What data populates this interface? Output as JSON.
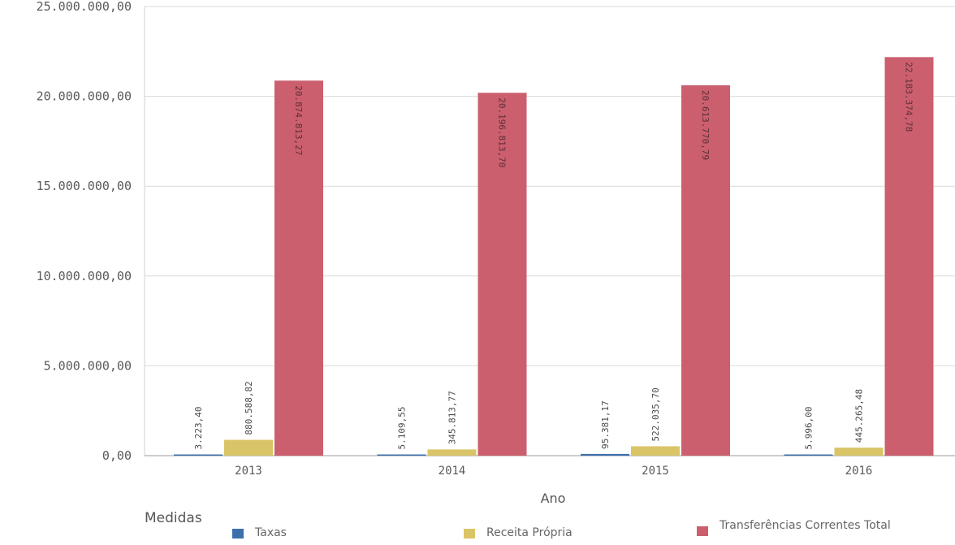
{
  "chart_data": {
    "type": "bar",
    "categories": [
      "2013",
      "2014",
      "2015",
      "2016"
    ],
    "xlabel": "Ano",
    "ylabel": "",
    "ylim": [
      0,
      25000000
    ],
    "yticks": [
      0,
      5000000,
      10000000,
      15000000,
      20000000,
      25000000
    ],
    "ytick_labels": [
      "0,00",
      "5.000.000,00",
      "10.000.000,00",
      "15.000.000,00",
      "20.000.000,00",
      "25.000.000,00"
    ],
    "grid": true,
    "legend_title": "Medidas",
    "legend_position": "bottom",
    "series": [
      {
        "name": "Taxas",
        "color": "#3d6faa",
        "values": [
          3223.4,
          5109.55,
          95381.17,
          5996.0
        ],
        "labels": [
          "3.223,40",
          "5.109,55",
          "95.381,17",
          "5.996,00"
        ]
      },
      {
        "name": "Receita Própria",
        "color": "#d9c468",
        "values": [
          880588.82,
          345813.77,
          522035.7,
          445265.48
        ],
        "labels": [
          "880.588,82",
          "345.813,77",
          "522.035,70",
          "445.265,48"
        ]
      },
      {
        "name": "Transferências Correntes Total",
        "color": "#cc5f6e",
        "values": [
          20874813.27,
          20196813.7,
          20613770.79,
          22183374.78
        ],
        "labels": [
          "20.874.813,27",
          "20.196.813,70",
          "20.613.770,79",
          "22.183.374,78"
        ]
      }
    ]
  }
}
